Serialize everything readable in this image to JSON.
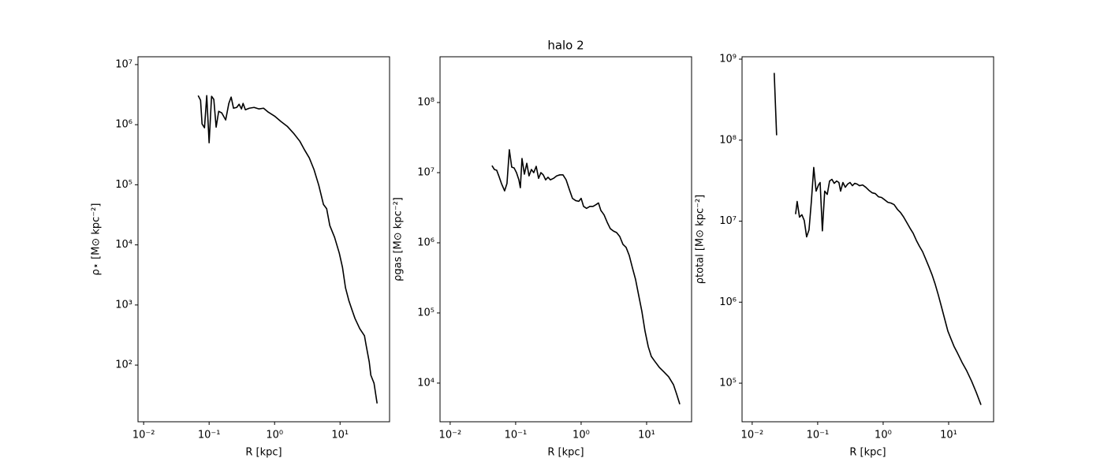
{
  "chart_data": [
    {
      "type": "line",
      "xlabel": "R [kpc]",
      "ylabel": "ρ⋆ [M⊙ kpc⁻²]",
      "xscale": "log",
      "yscale": "log",
      "xlim": [
        0.0082,
        57
      ],
      "ylim": [
        11.4,
        13500000.0
      ],
      "xticks": [
        {
          "value": 0.01,
          "label": "10⁻²"
        },
        {
          "value": 0.1,
          "label": "10⁻¹"
        },
        {
          "value": 1,
          "label": "10⁰"
        },
        {
          "value": 10,
          "label": "10¹"
        }
      ],
      "yticks": [
        {
          "value": 100,
          "label": "10²"
        },
        {
          "value": 1000,
          "label": "10³"
        },
        {
          "value": 10000,
          "label": "10⁴"
        },
        {
          "value": 100000,
          "label": "10⁵"
        },
        {
          "value": 1000000,
          "label": "10⁶"
        },
        {
          "value": 10000000,
          "label": "10⁷"
        }
      ],
      "series": [
        {
          "color": "#000000",
          "x": [
            0.068,
            0.074,
            0.078,
            0.085,
            0.092,
            0.1,
            0.109,
            0.118,
            0.128,
            0.14,
            0.156,
            0.179,
            0.2,
            0.217,
            0.236,
            0.264,
            0.287,
            0.312,
            0.33,
            0.358,
            0.411,
            0.486,
            0.574,
            0.678,
            0.8,
            1.0,
            1.25,
            1.56,
            1.95,
            2.43,
            2.87,
            3.39,
            4.0,
            4.73,
            5.58,
            6.24,
            6.97,
            8.24,
            9.73,
            10.9,
            12.1,
            13.6,
            15.2,
            16.9,
            20.0,
            23.6,
            25.0,
            27.9,
            29.5,
            33.0,
            36.8
          ],
          "values": [
            3050000.0,
            2550000.0,
            1030000.0,
            890000.0,
            3050000.0,
            500000.0,
            2970000.0,
            2630000.0,
            910000.0,
            1670000.0,
            1570000.0,
            1200000.0,
            2260000.0,
            2880000.0,
            1880000.0,
            1940000.0,
            2190000.0,
            1830000.0,
            2260000.0,
            1770000.0,
            1880000.0,
            1940000.0,
            1830000.0,
            1880000.0,
            1620000.0,
            1390000.0,
            1130000.0,
            940000.0,
            720000.0,
            530000.0,
            380000.0,
            280000.0,
            179000.0,
            98000.0,
            47000.0,
            40000.0,
            21000.0,
            13400.0,
            7300,
            4200,
            1940,
            1190,
            830,
            597,
            403,
            307,
            214,
            113,
            68,
            50,
            23
          ]
        }
      ]
    },
    {
      "type": "line",
      "title": "halo 2",
      "xlabel": "R [kpc]",
      "ylabel": "ρgas [M⊙ kpc⁻²]",
      "xscale": "log",
      "yscale": "log",
      "xlim": [
        0.007,
        48.6
      ],
      "ylim": [
        2810,
        449000000.0
      ],
      "xticks": [
        {
          "value": 0.01,
          "label": "10⁻²"
        },
        {
          "value": 0.1,
          "label": "10⁻¹"
        },
        {
          "value": 1,
          "label": "10⁰"
        },
        {
          "value": 10,
          "label": "10¹"
        }
      ],
      "yticks": [
        {
          "value": 10000,
          "label": "10⁴"
        },
        {
          "value": 100000,
          "label": "10⁵"
        },
        {
          "value": 1000000,
          "label": "10⁶"
        },
        {
          "value": 10000000,
          "label": "10⁷"
        },
        {
          "value": 100000000,
          "label": "10⁸"
        }
      ],
      "series": [
        {
          "color": "#000000",
          "x": [
            0.0435,
            0.0473,
            0.0514,
            0.0558,
            0.0607,
            0.0678,
            0.0737,
            0.0801,
            0.0871,
            0.0946,
            0.103,
            0.112,
            0.118,
            0.125,
            0.136,
            0.148,
            0.16,
            0.174,
            0.189,
            0.206,
            0.224,
            0.243,
            0.264,
            0.287,
            0.312,
            0.339,
            0.379,
            0.423,
            0.473,
            0.528,
            0.59,
            0.659,
            0.737,
            0.824,
            0.92,
            1.0,
            1.09,
            1.21,
            1.36,
            1.52,
            1.69,
            1.84,
            2.0,
            2.24,
            2.5,
            2.79,
            3.12,
            3.48,
            3.89,
            4.35,
            4.86,
            5.43,
            6.07,
            6.78,
            7.58,
            8.47,
            9.46,
            10.6,
            11.8,
            13.2,
            15.6,
            18.4,
            21.7,
            25.7,
            28.7,
            32.1
          ],
          "values": [
            12600000.0,
            11100000.0,
            10800000.0,
            8800000.0,
            7000000.0,
            5500000.0,
            7000000.0,
            21200000.0,
            12000000.0,
            11700000.0,
            10000000.0,
            7900000.0,
            6100000.0,
            15900000.0,
            9500000.0,
            13600000.0,
            9000000.0,
            11100000.0,
            10000000.0,
            12300000.0,
            8300000.0,
            10000000.0,
            9300000.0,
            7900000.0,
            8600000.0,
            7900000.0,
            8300000.0,
            9000000.0,
            9300000.0,
            9300000.0,
            7900000.0,
            5800000.0,
            4300000.0,
            4000000.0,
            3900000.0,
            4300000.0,
            3300000.0,
            3100000.0,
            3300000.0,
            3300000.0,
            3500000.0,
            3700000.0,
            2900000.0,
            2500000.0,
            1960000.0,
            1590000.0,
            1470000.0,
            1400000.0,
            1230000.0,
            950000.0,
            860000.0,
            660000.0,
            440000.0,
            300000.0,
            177000.0,
            105000.0,
            55000.0,
            33000.0,
            24000.0,
            20700.0,
            16800.0,
            14400.0,
            12300.0,
            9500,
            7000,
            5000
          ]
        }
      ]
    },
    {
      "type": "line",
      "xlabel": "R [kpc]",
      "ylabel": "ρtotal [M⊙ kpc⁻²]",
      "xscale": "log",
      "yscale": "log",
      "xlim": [
        0.007,
        48.6
      ],
      "ylim": [
        33400,
        1070000000.0
      ],
      "xticks": [
        {
          "value": 0.01,
          "label": "10⁻²"
        },
        {
          "value": 0.1,
          "label": "10⁻¹"
        },
        {
          "value": 1,
          "label": "10⁰"
        },
        {
          "value": 10,
          "label": "10¹"
        }
      ],
      "yticks": [
        {
          "value": 100000,
          "label": "10⁵"
        },
        {
          "value": 1000000,
          "label": "10⁶"
        },
        {
          "value": 10000000,
          "label": "10⁷"
        },
        {
          "value": 100000000,
          "label": "10⁸"
        },
        {
          "value": 1000000000,
          "label": "10⁹"
        }
      ],
      "series": [
        {
          "color": "#000000",
          "x": [
            0.0217,
            0.0236,
            null,
            0.046,
            0.0486,
            0.0528,
            0.0574,
            0.0624,
            0.0678,
            0.0737,
            0.0801,
            0.0871,
            0.0946,
            0.103,
            0.109,
            0.118,
            0.128,
            0.14,
            0.152,
            0.165,
            0.179,
            0.195,
            0.211,
            0.224,
            0.243,
            0.264,
            0.287,
            0.312,
            0.339,
            0.368,
            0.4,
            0.435,
            0.486,
            0.543,
            0.607,
            0.678,
            0.758,
            0.847,
            0.946,
            1.06,
            1.18,
            1.32,
            1.47,
            1.65,
            1.84,
            2.06,
            2.3,
            2.57,
            2.87,
            3.21,
            3.58,
            4.0,
            4.47,
            5.0,
            5.58,
            6.24,
            6.97,
            7.79,
            8.7,
            9.73,
            10.9,
            12.1,
            13.6,
            16.0,
            18.9,
            22.4,
            26.4,
            31.2
          ],
          "values": [
            676000000.0,
            115000000.0,
            null,
            12200000.0,
            17500000.0,
            11200000.0,
            12000000.0,
            10200000.0,
            6400000.0,
            7800000.0,
            17500000.0,
            46000000.0,
            23500000.0,
            28000000.0,
            30000000.0,
            7600000.0,
            23500000.0,
            21400000.0,
            31300000.0,
            32800000.0,
            29300000.0,
            31300000.0,
            30000000.0,
            23500000.0,
            30000000.0,
            26200000.0,
            28700000.0,
            30000000.0,
            27400000.0,
            29300000.0,
            28700000.0,
            27400000.0,
            28000000.0,
            26200000.0,
            24000000.0,
            22400000.0,
            21900000.0,
            20000000.0,
            19600000.0,
            18300000.0,
            17100000.0,
            16700000.0,
            16000000.0,
            14000000.0,
            12800000.0,
            11200000.0,
            9600000.0,
            8200000.0,
            7100000.0,
            5800000.0,
            4900000.0,
            4200000.0,
            3400000.0,
            2730000.0,
            2180000.0,
            1660000.0,
            1220000.0,
            870000.0,
            620000.0,
            440000.0,
            350000.0,
            284000.0,
            237000.0,
            181000.0,
            142000.0,
            106000.0,
            77000.0,
            54000.0
          ]
        }
      ]
    }
  ]
}
